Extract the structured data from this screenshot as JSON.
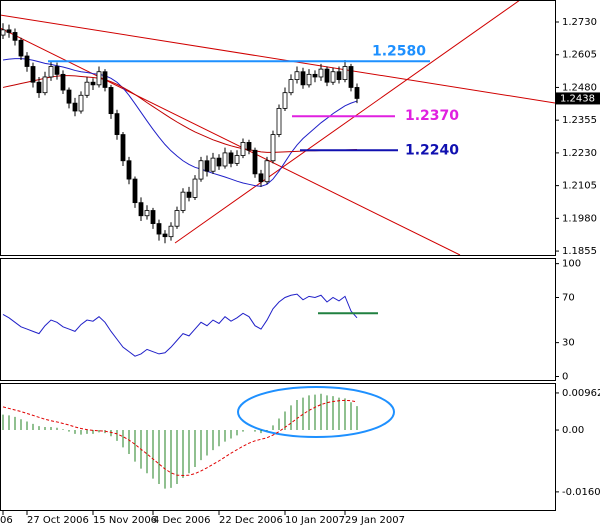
{
  "chart_data": [
    {
      "type": "candlestick",
      "open": [
        1.268,
        1.27,
        1.269,
        1.266,
        1.26,
        1.256,
        1.25,
        1.246,
        1.252,
        1.256,
        1.253,
        1.247,
        1.242,
        1.239,
        1.245,
        1.25,
        1.249,
        1.254,
        1.248,
        1.238,
        1.23,
        1.22,
        1.213,
        1.204,
        1.199,
        1.201,
        1.196,
        1.192,
        1.191,
        1.195,
        1.201,
        1.208,
        1.206,
        1.213,
        1.22,
        1.216,
        1.221,
        1.218,
        1.223,
        1.219,
        1.222,
        1.227,
        1.224,
        1.215,
        1.212,
        1.22,
        1.23,
        1.24,
        1.246,
        1.251,
        1.254,
        1.249,
        1.253,
        1.252,
        1.255,
        1.25,
        1.254,
        1.251,
        1.256,
        1.248
      ],
      "high": [
        1.2725,
        1.272,
        1.2705,
        1.267,
        1.2615,
        1.2575,
        1.252,
        1.254,
        1.258,
        1.2575,
        1.2545,
        1.248,
        1.244,
        1.2465,
        1.252,
        1.2515,
        1.256,
        1.255,
        1.249,
        1.2395,
        1.231,
        1.2215,
        1.214,
        1.206,
        1.203,
        1.202,
        1.1975,
        1.1935,
        1.1965,
        1.2025,
        1.2095,
        1.21,
        1.2145,
        1.2215,
        1.222,
        1.223,
        1.2225,
        1.225,
        1.224,
        1.224,
        1.2285,
        1.228,
        1.225,
        1.2165,
        1.2215,
        1.2315,
        1.2415,
        1.248,
        1.253,
        1.256,
        1.2555,
        1.255,
        1.2545,
        1.257,
        1.256,
        1.2555,
        1.256,
        1.2585,
        1.257,
        1.2495
      ],
      "low": [
        1.2665,
        1.267,
        1.264,
        1.2585,
        1.254,
        1.248,
        1.244,
        1.245,
        1.2505,
        1.251,
        1.2455,
        1.24,
        1.237,
        1.238,
        1.244,
        1.247,
        1.248,
        1.2465,
        1.236,
        1.228,
        1.218,
        1.211,
        1.202,
        1.197,
        1.1975,
        1.194,
        1.1895,
        1.1885,
        1.1895,
        1.194,
        1.2,
        1.2045,
        1.205,
        1.212,
        1.214,
        1.215,
        1.2165,
        1.217,
        1.2175,
        1.218,
        1.221,
        1.2225,
        1.2135,
        1.21,
        1.211,
        1.219,
        1.229,
        1.239,
        1.245,
        1.2495,
        1.2475,
        1.248,
        1.25,
        1.2505,
        1.2485,
        1.249,
        1.2495,
        1.25,
        1.2465,
        1.242
      ],
      "close": [
        1.27,
        1.269,
        1.266,
        1.26,
        1.256,
        1.25,
        1.246,
        1.252,
        1.256,
        1.253,
        1.247,
        1.242,
        1.239,
        1.245,
        1.25,
        1.249,
        1.254,
        1.248,
        1.238,
        1.23,
        1.22,
        1.213,
        1.204,
        1.199,
        1.201,
        1.196,
        1.192,
        1.191,
        1.195,
        1.201,
        1.208,
        1.206,
        1.213,
        1.22,
        1.216,
        1.221,
        1.218,
        1.223,
        1.219,
        1.222,
        1.227,
        1.224,
        1.215,
        1.212,
        1.22,
        1.23,
        1.24,
        1.246,
        1.251,
        1.254,
        1.249,
        1.253,
        1.252,
        1.255,
        1.25,
        1.254,
        1.251,
        1.256,
        1.248,
        1.2438
      ],
      "overlays": [
        {
          "color": "#2020c8",
          "values": [
            1.2585,
            1.2588,
            1.259,
            1.259,
            1.2588,
            1.2584,
            1.2578,
            1.2572,
            1.2568,
            1.2563,
            1.2558,
            1.2552,
            1.2545,
            1.254,
            1.2537,
            1.2533,
            1.253,
            1.2525,
            1.2515,
            1.25,
            1.2478,
            1.245,
            1.2418,
            1.2385,
            1.2352,
            1.232,
            1.229,
            1.2262,
            1.2238,
            1.2218,
            1.22,
            1.2186,
            1.2175,
            1.2168,
            1.216,
            1.2152,
            1.2145,
            1.2138,
            1.213,
            1.2122,
            1.2115,
            1.211,
            1.2105,
            1.2102,
            1.211,
            1.213,
            1.216,
            1.2195,
            1.223,
            1.226,
            1.2285,
            1.2305,
            1.2325,
            1.2345,
            1.2362,
            1.238,
            1.2395,
            1.241,
            1.242,
            1.2428
          ]
        },
        {
          "color": "#c00000",
          "values": [
            1.248,
            1.2485,
            1.249,
            1.2495,
            1.25,
            1.2505,
            1.251,
            1.2515,
            1.252,
            1.2523,
            1.2525,
            1.2525,
            1.2524,
            1.2522,
            1.252,
            1.2518,
            1.2515,
            1.251,
            1.2502,
            1.2492,
            1.248,
            1.2467,
            1.2453,
            1.2438,
            1.2422,
            1.2407,
            1.2392,
            1.2377,
            1.2362,
            1.2348,
            1.2335,
            1.2322,
            1.231,
            1.23,
            1.229,
            1.228,
            1.2272,
            1.2264,
            1.2257,
            1.2251,
            1.2246,
            1.2242,
            1.2238,
            1.2234,
            1.2232,
            1.2232,
            1.2233,
            1.2234,
            1.2235,
            1.2236,
            1.2237,
            1.2238,
            1.2238,
            1.2239,
            1.224,
            1.224,
            1.2241,
            1.2241,
            1.2242,
            1.2243
          ]
        }
      ],
      "levels": [
        {
          "value": 1.258,
          "label": "1.2580",
          "color": "#1e90ff"
        },
        {
          "value": 1.237,
          "label": "1.2370",
          "color": "#e020e0"
        },
        {
          "value": 1.224,
          "label": "1.2240",
          "color": "#1010b0"
        }
      ],
      "last": 1.2438,
      "ylim": [
        1.184,
        1.2814
      ],
      "yticks": [
        {
          "value": 1.273,
          "label": "1.2730"
        },
        1.2605,
        {
          "value": 1.248,
          "label": "1.2480"
        },
        1.2355,
        {
          "value": 1.223,
          "label": "1.2230"
        },
        1.2105,
        {
          "value": 1.198,
          "label": "1.1980"
        },
        1.1855
      ]
    },
    {
      "type": "line",
      "color": "#2020c8",
      "values": [
        55,
        52,
        48,
        44,
        42,
        40,
        38,
        45,
        50,
        48,
        44,
        42,
        40,
        46,
        50,
        49,
        53,
        48,
        40,
        33,
        26,
        22,
        18,
        20,
        24,
        22,
        20,
        21,
        26,
        32,
        38,
        36,
        42,
        48,
        45,
        50,
        47,
        53,
        49,
        52,
        56,
        53,
        45,
        42,
        50,
        60,
        66,
        70,
        72,
        73,
        68,
        71,
        70,
        72,
        66,
        70,
        67,
        71,
        58,
        52
      ],
      "level": 56,
      "level_color": "#208040",
      "ylim": [
        -4,
        105
      ],
      "yticks": [
        100,
        70,
        30,
        0
      ]
    },
    {
      "type": "histogram",
      "color": "#208020",
      "values": [
        0.004,
        0.0038,
        0.0034,
        0.0028,
        0.0022,
        0.0016,
        0.001,
        0.0008,
        0.0008,
        0.0006,
        0.0002,
        -0.0004,
        -0.001,
        -0.0012,
        -0.001,
        -0.001,
        -0.0006,
        -0.0008,
        -0.0016,
        -0.0028,
        -0.0045,
        -0.0062,
        -0.0082,
        -0.01,
        -0.0112,
        -0.0126,
        -0.014,
        -0.0152,
        -0.015,
        -0.014,
        -0.0124,
        -0.0112,
        -0.0096,
        -0.0078,
        -0.0066,
        -0.0052,
        -0.0042,
        -0.003,
        -0.0022,
        -0.0014,
        -0.0004,
        0.0,
        -0.0004,
        -0.0008,
        -0.0002,
        0.0012,
        0.003,
        0.0048,
        0.0064,
        0.0078,
        0.0084,
        0.009,
        0.0092,
        0.0094,
        0.009,
        0.0088,
        0.0084,
        0.0082,
        0.0072,
        0.0062
      ],
      "signal": {
        "color": "#e00000",
        "values": [
          0.006,
          0.0056,
          0.0052,
          0.0048,
          0.0043,
          0.0038,
          0.0033,
          0.0028,
          0.0024,
          0.0021,
          0.0017,
          0.0013,
          0.0008,
          0.0004,
          0.0001,
          -0.0001,
          -0.0002,
          -0.0003,
          -0.0006,
          -0.001,
          -0.0017,
          -0.0026,
          -0.0037,
          -0.005,
          -0.0062,
          -0.0075,
          -0.0088,
          -0.0101,
          -0.0111,
          -0.0117,
          -0.0118,
          -0.0117,
          -0.0113,
          -0.0106,
          -0.0098,
          -0.0089,
          -0.008,
          -0.007,
          -0.006,
          -0.0051,
          -0.0042,
          -0.0034,
          -0.0028,
          -0.0024,
          -0.002,
          -0.0013,
          -0.0004,
          0.0007,
          0.0018,
          0.003,
          0.0041,
          0.0051,
          0.0059,
          0.0066,
          0.0071,
          0.0074,
          0.0076,
          0.0077,
          0.0076,
          0.0073
        ]
      },
      "ylim": [
        -0.021,
        0.0122
      ],
      "yticks": [
        0.00962,
        {
          "value": 0,
          "label": "0.00"
        },
        -0.01604
      ],
      "categories": [
        "06",
        null,
        null,
        null,
        "27 Oct 2006",
        null,
        null,
        null,
        null,
        null,
        null,
        null,
        null,
        null,
        null,
        "15 Nov 2006",
        null,
        null,
        null,
        null,
        null,
        null,
        null,
        null,
        null,
        "4 Dec 2006",
        null,
        null,
        null,
        null,
        null,
        null,
        null,
        null,
        null,
        null,
        "22 Dec 2006",
        null,
        null,
        null,
        null,
        null,
        null,
        null,
        null,
        null,
        null,
        "10 Jan 2007",
        null,
        null,
        null,
        null,
        null,
        null,
        null,
        null,
        null,
        "29 Jan 2007",
        null,
        null
      ]
    }
  ]
}
